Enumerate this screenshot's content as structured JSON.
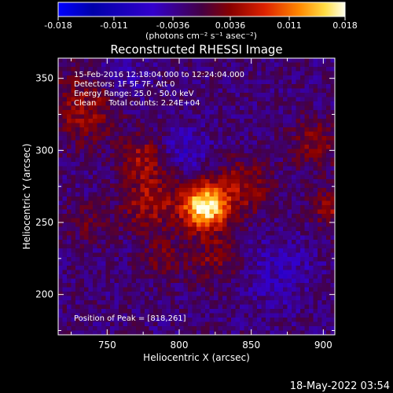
{
  "chart_data": {
    "type": "heatmap",
    "title": "Reconstructed RHESSI Image",
    "colorbar": {
      "ticks": [
        "-0.018",
        "-0.011",
        "-0.0036",
        "0.0036",
        "0.011",
        "0.018"
      ],
      "unit": "(photons cm⁻² s⁻¹ asec⁻²)",
      "range": [
        -0.018,
        0.018
      ]
    },
    "xlabel": "Heliocentric X (arcsec)",
    "ylabel": "Heliocentric Y (arcsec)",
    "xlim": [
      716,
      908
    ],
    "ylim": [
      172,
      364
    ],
    "xticks": [
      "750",
      "800",
      "850",
      "900"
    ],
    "yticks": [
      "200",
      "250",
      "300",
      "350"
    ],
    "annotations": [
      "15-Feb-2016 12:18:04.000 to 12:24:04.000",
      "Detectors: 1F 5F 7F, Att 0",
      "Energy Range: 25.0 - 50.0 keV",
      "Clean     Total counts: 2.24E+04"
    ],
    "peak_label": "Position of Peak = [818,261]",
    "peak": [
      818,
      261
    ],
    "timestamp": "18-May-2022 03:54"
  }
}
